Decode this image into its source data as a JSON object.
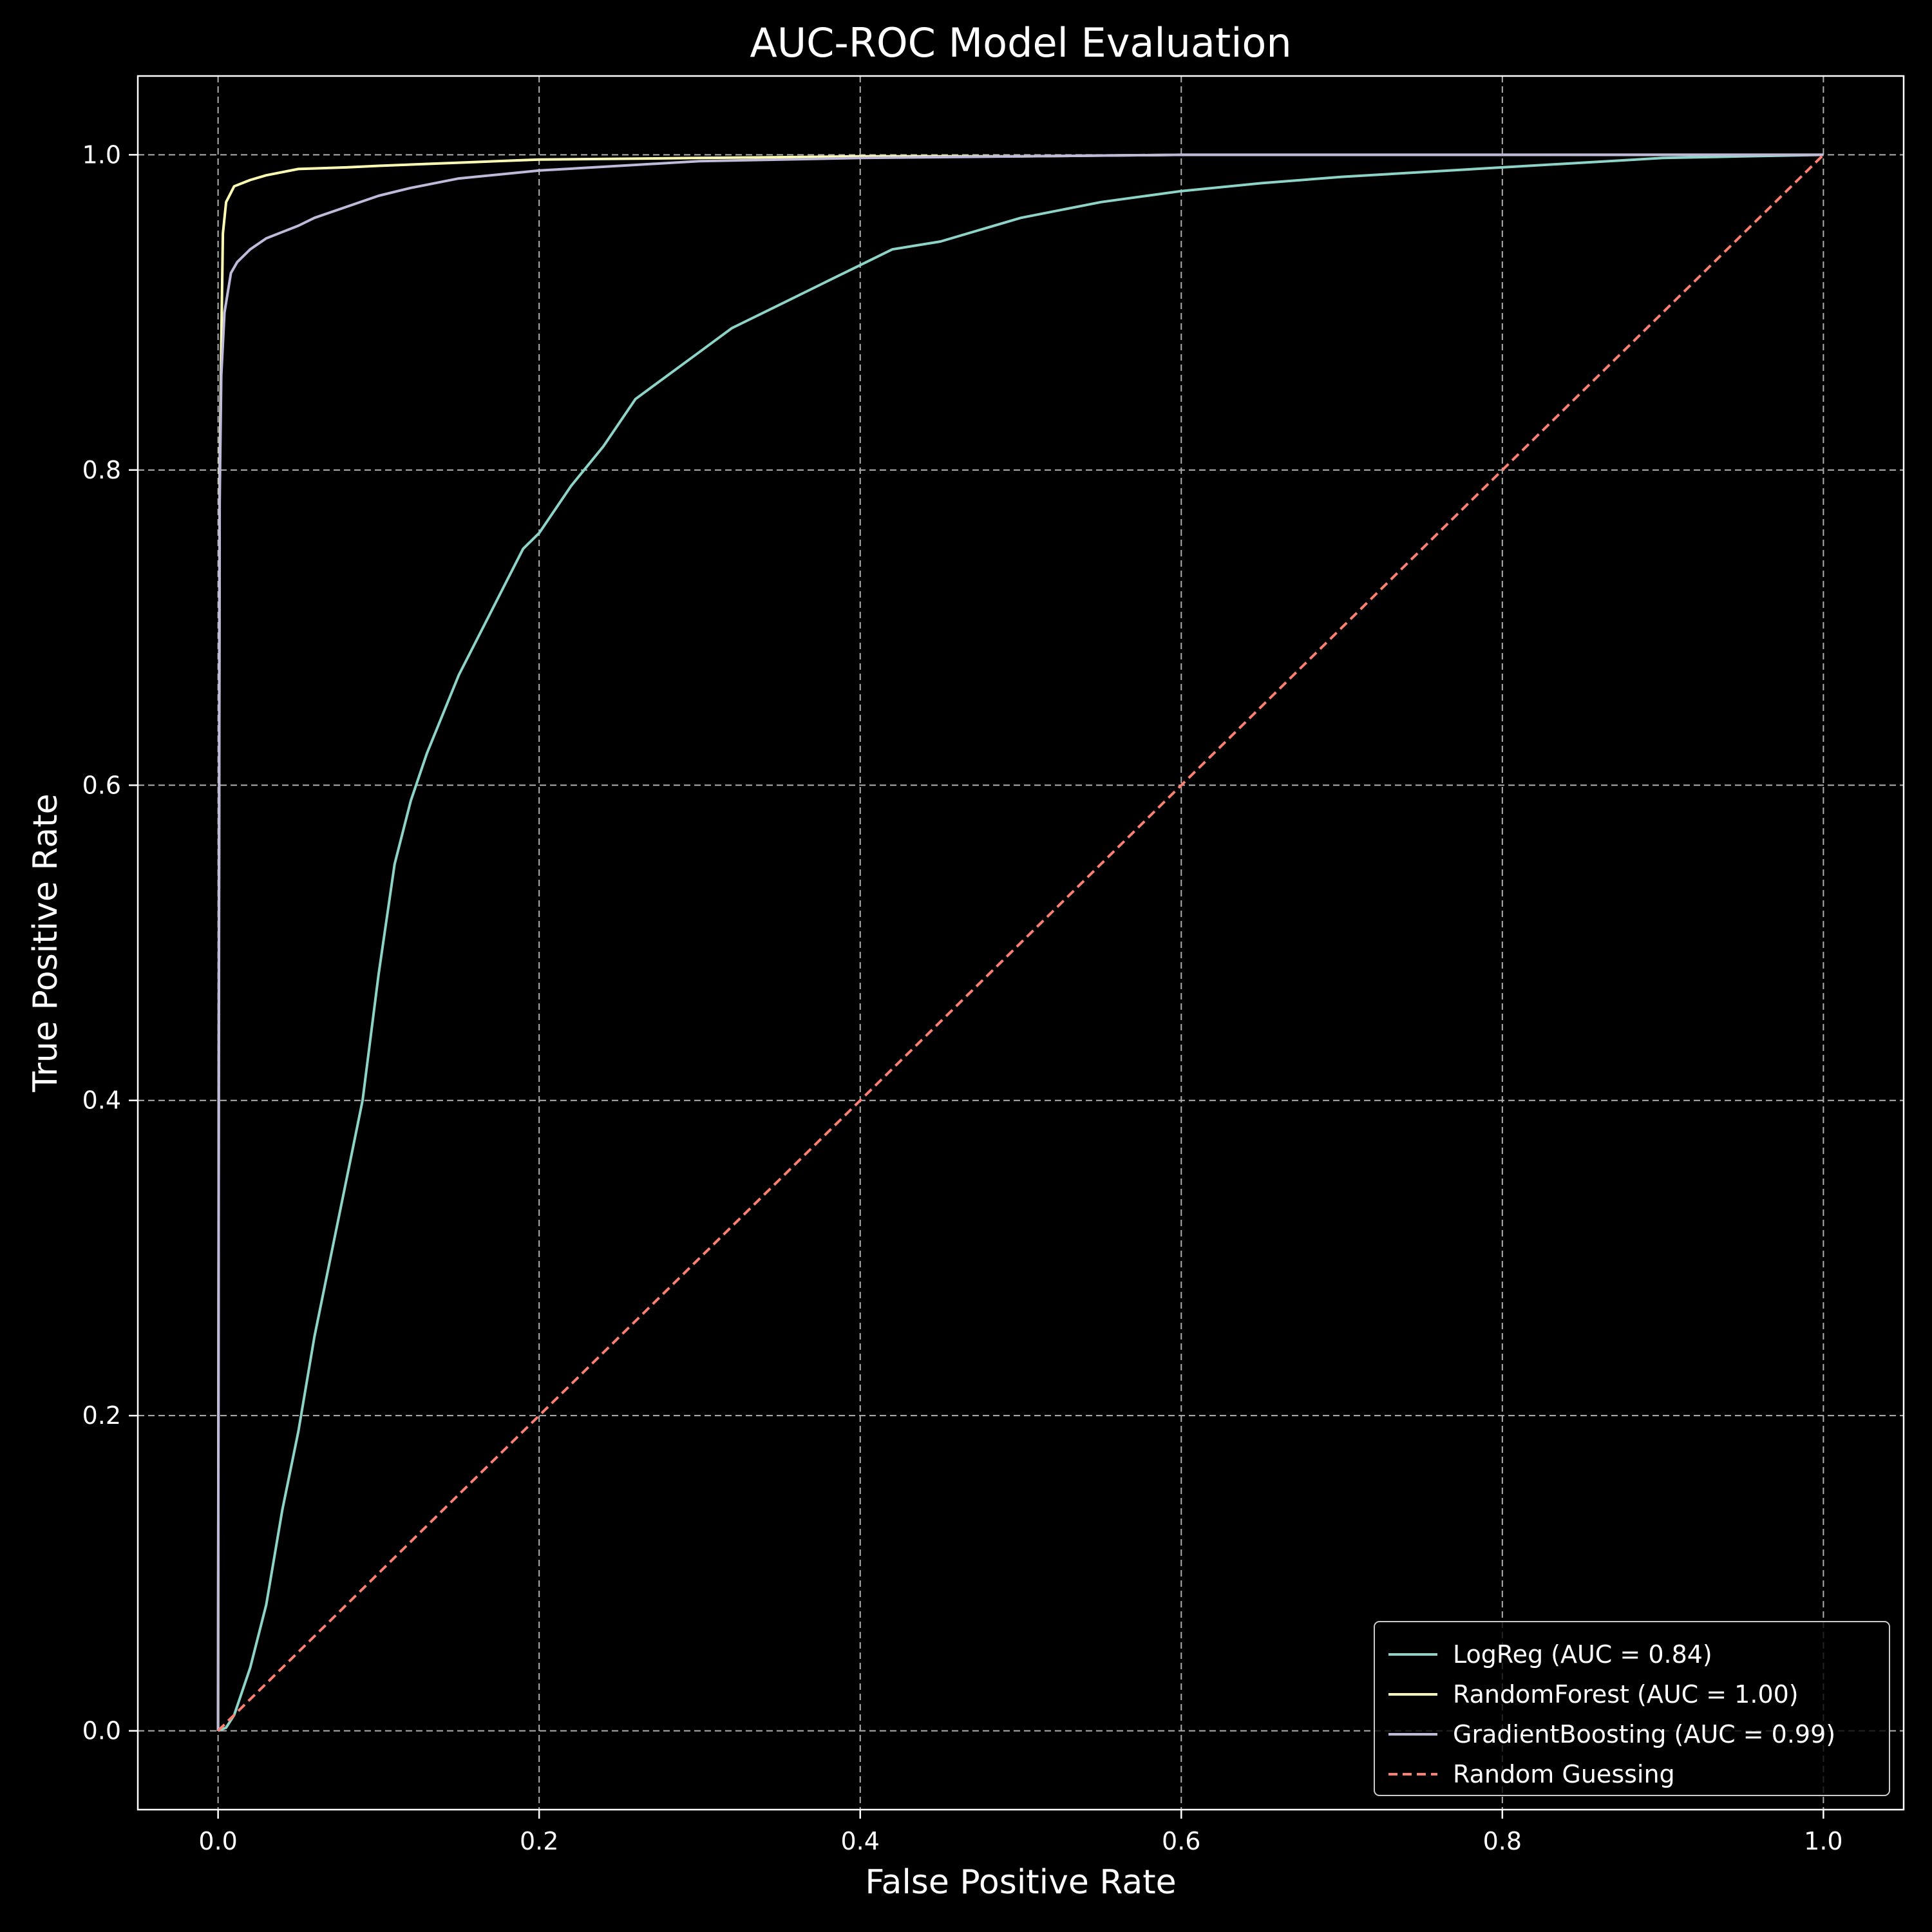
{
  "chart_data": {
    "type": "line",
    "title": "AUC-ROC Model Evaluation",
    "xlabel": "False Positive Rate",
    "ylabel": "True Positive Rate",
    "xlim": [
      -0.05,
      1.05
    ],
    "ylim": [
      -0.05,
      1.05
    ],
    "xticks": [
      0.0,
      0.2,
      0.4,
      0.6,
      0.8,
      1.0
    ],
    "xtick_labels": [
      "0.0",
      "0.2",
      "0.4",
      "0.6",
      "0.8",
      "1.0"
    ],
    "yticks": [
      0.0,
      0.2,
      0.4,
      0.6,
      0.8,
      1.0
    ],
    "ytick_labels": [
      "0.0",
      "0.2",
      "0.4",
      "0.6",
      "0.8",
      "1.0"
    ],
    "grid": true,
    "legend_position": "lower-right",
    "background": "#000000",
    "series": [
      {
        "name": "LogReg (AUC = 0.84)",
        "color": "#8dd3c7",
        "style": "solid",
        "x": [
          0.0,
          0.005,
          0.01,
          0.02,
          0.03,
          0.04,
          0.05,
          0.06,
          0.07,
          0.08,
          0.09,
          0.1,
          0.11,
          0.12,
          0.13,
          0.14,
          0.15,
          0.16,
          0.17,
          0.18,
          0.19,
          0.2,
          0.22,
          0.24,
          0.26,
          0.28,
          0.3,
          0.32,
          0.35,
          0.38,
          0.4,
          0.42,
          0.45,
          0.5,
          0.55,
          0.6,
          0.65,
          0.7,
          0.75,
          0.8,
          0.85,
          0.9,
          0.95,
          1.0
        ],
        "y": [
          0.0,
          0.002,
          0.01,
          0.04,
          0.08,
          0.14,
          0.19,
          0.25,
          0.3,
          0.35,
          0.4,
          0.48,
          0.55,
          0.59,
          0.62,
          0.645,
          0.67,
          0.69,
          0.71,
          0.73,
          0.75,
          0.76,
          0.79,
          0.815,
          0.845,
          0.86,
          0.875,
          0.89,
          0.905,
          0.92,
          0.93,
          0.94,
          0.945,
          0.96,
          0.97,
          0.977,
          0.982,
          0.986,
          0.989,
          0.992,
          0.995,
          0.998,
          0.999,
          1.0
        ]
      },
      {
        "name": "RandomForest (AUC = 1.00)",
        "color": "#ffffb3",
        "style": "solid",
        "x": [
          0.0,
          0.0005,
          0.001,
          0.002,
          0.003,
          0.005,
          0.01,
          0.02,
          0.03,
          0.05,
          0.08,
          0.1,
          0.15,
          0.2,
          0.3,
          0.4,
          0.5,
          0.6,
          0.8,
          1.0
        ],
        "y": [
          0.0,
          0.5,
          0.8,
          0.88,
          0.95,
          0.97,
          0.98,
          0.984,
          0.987,
          0.991,
          0.992,
          0.993,
          0.995,
          0.997,
          0.998,
          0.999,
          0.999,
          1.0,
          1.0,
          1.0
        ]
      },
      {
        "name": "GradientBoosting (AUC = 0.99)",
        "color": "#bebada",
        "style": "solid",
        "x": [
          0.0,
          0.0005,
          0.001,
          0.002,
          0.004,
          0.008,
          0.012,
          0.02,
          0.03,
          0.04,
          0.05,
          0.06,
          0.08,
          0.1,
          0.12,
          0.15,
          0.18,
          0.2,
          0.25,
          0.3,
          0.4,
          0.5,
          0.6,
          0.8,
          1.0
        ],
        "y": [
          0.0,
          0.45,
          0.78,
          0.86,
          0.9,
          0.925,
          0.932,
          0.94,
          0.947,
          0.951,
          0.955,
          0.96,
          0.967,
          0.974,
          0.979,
          0.985,
          0.988,
          0.99,
          0.993,
          0.996,
          0.998,
          0.999,
          1.0,
          1.0,
          1.0
        ]
      },
      {
        "name": "Random Guessing",
        "color": "#fb8072",
        "style": "dashed",
        "x": [
          0.0,
          1.0
        ],
        "y": [
          0.0,
          1.0
        ]
      }
    ]
  }
}
